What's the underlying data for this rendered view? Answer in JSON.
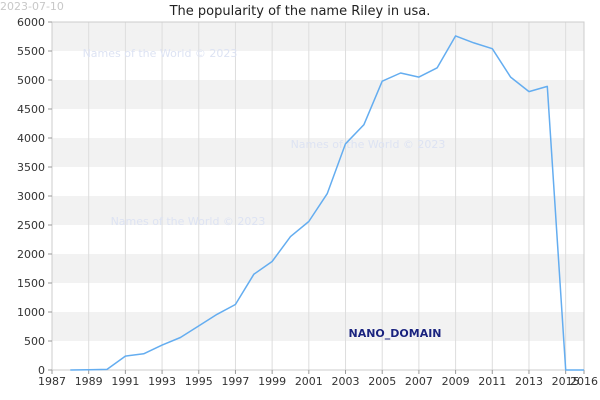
{
  "date_stamp": "2023-07-10",
  "watermarks": [
    "Names of the World © 2023",
    "Names of the World © 2023",
    "Names of the World © 2023"
  ],
  "brand_label": "NANO_DOMAIN",
  "chart_data": {
    "type": "line",
    "title": "The popularity of the name Riley in usa.",
    "xlabel": "",
    "ylabel": "",
    "xlim": [
      1987,
      2016
    ],
    "ylim": [
      0,
      6000
    ],
    "x_ticks": [
      "1987",
      "1989",
      "1991",
      "1993",
      "1995",
      "1997",
      "1999",
      "2001",
      "2003",
      "2005",
      "2007",
      "2009",
      "2011",
      "2013",
      "2015",
      "2016"
    ],
    "y_ticks": [
      "0",
      "500",
      "1000",
      "1500",
      "2000",
      "2500",
      "3000",
      "3500",
      "4000",
      "4500",
      "5000",
      "5500",
      "6000"
    ],
    "grid": "horizontal bands",
    "line_color": "#64adf0",
    "band_color": "#f2f2f2",
    "series": [
      {
        "x": [
          1988,
          1989,
          1990,
          1991,
          1992,
          1993,
          1994,
          1995,
          1996,
          1997,
          1998,
          1999,
          2000,
          2001,
          2002,
          2003,
          2004,
          2005,
          2006,
          2007,
          2008,
          2009,
          2010,
          2011,
          2012,
          2013,
          2014,
          2015,
          2016
        ],
        "values": [
          0,
          5,
          10,
          240,
          280,
          430,
          560,
          760,
          960,
          1130,
          1650,
          1870,
          2300,
          2560,
          3040,
          3900,
          4230,
          4980,
          5120,
          5050,
          5210,
          5760,
          5640,
          5540,
          5050,
          4800,
          4890,
          0,
          0
        ]
      }
    ]
  }
}
